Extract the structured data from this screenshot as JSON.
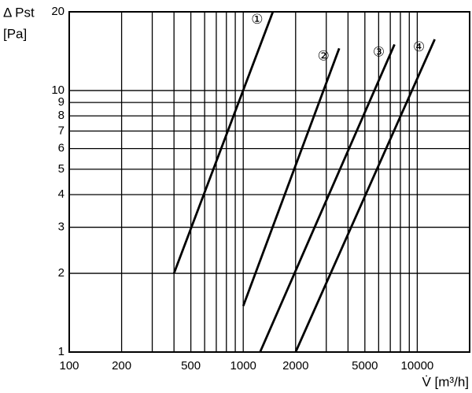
{
  "chart_data": {
    "type": "line",
    "y_axis_label": [
      "Δ Pst",
      "[Pa]"
    ],
    "x_axis_label": "V̇ [m³/h]",
    "xscale": "log",
    "yscale": "log",
    "xlim": [
      100,
      20000
    ],
    "ylim": [
      1,
      20
    ],
    "xticks": [
      100,
      200,
      500,
      1000,
      2000,
      5000,
      10000
    ],
    "x_minor_grid": [
      300,
      400,
      600,
      700,
      800,
      900,
      3000,
      4000,
      6000,
      7000,
      8000,
      9000,
      20000
    ],
    "yticks": [
      1,
      2,
      3,
      4,
      5,
      6,
      7,
      8,
      9,
      10,
      20
    ],
    "grid": true,
    "series": [
      {
        "name": "①",
        "color": "#000000",
        "x": [
          400,
          1480
        ],
        "values": [
          2,
          20
        ]
      },
      {
        "name": "②",
        "color": "#000000",
        "x": [
          1000,
          3560
        ],
        "values": [
          1.5,
          14.5
        ]
      },
      {
        "name": "③",
        "color": "#000000",
        "x": [
          1250,
          7400
        ],
        "values": [
          1,
          15
        ]
      },
      {
        "name": "④",
        "color": "#000000",
        "x": [
          2000,
          12600
        ],
        "values": [
          1,
          15.7
        ]
      }
    ]
  }
}
